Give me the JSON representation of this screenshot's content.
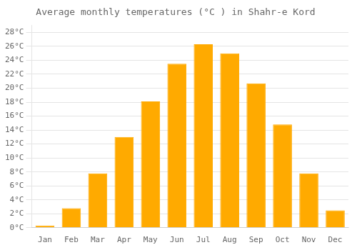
{
  "chart_data": {
    "type": "bar",
    "title": "Average monthly temperatures (°C ) in Shahr-e Kord",
    "categories": [
      "Jan",
      "Feb",
      "Mar",
      "Apr",
      "May",
      "Jun",
      "Jul",
      "Aug",
      "Sep",
      "Oct",
      "Nov",
      "Dec"
    ],
    "values": [
      0.3,
      2.8,
      7.8,
      13.0,
      18.1,
      23.5,
      26.3,
      25.0,
      20.7,
      14.8,
      7.8,
      2.5
    ],
    "color": "#FFAA00",
    "ylim": [
      0,
      29
    ],
    "yticks": [
      {
        "value": 0,
        "label": "0°C"
      },
      {
        "value": 2,
        "label": "2°C"
      },
      {
        "value": 4,
        "label": "4°C"
      },
      {
        "value": 6,
        "label": "6°C"
      },
      {
        "value": 8,
        "label": "8°C"
      },
      {
        "value": 10,
        "label": "10°C"
      },
      {
        "value": 12,
        "label": "12°C"
      },
      {
        "value": 14,
        "label": "14°C"
      },
      {
        "value": 16,
        "label": "16°C"
      },
      {
        "value": 18,
        "label": "18°C"
      },
      {
        "value": 20,
        "label": "20°C"
      },
      {
        "value": 22,
        "label": "22°C"
      },
      {
        "value": 24,
        "label": "24°C"
      },
      {
        "value": 26,
        "label": "26°C"
      },
      {
        "value": 28,
        "label": "28°C"
      }
    ],
    "grid": true
  }
}
